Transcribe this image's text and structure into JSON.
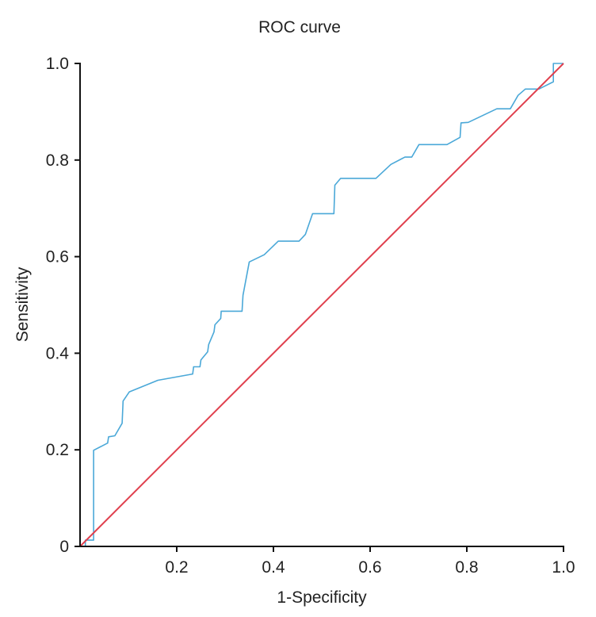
{
  "chart_data": {
    "type": "line",
    "title": "ROC curve",
    "xlabel": "1-Specificity",
    "ylabel": "Sensitivity",
    "xlim": [
      0,
      1.0
    ],
    "ylim": [
      0,
      1.0
    ],
    "x_ticks": [
      0.2,
      0.4,
      0.6,
      0.8,
      1.0
    ],
    "x_tick_labels": [
      "0.2",
      "0.4",
      "0.6",
      "0.8",
      "1.0"
    ],
    "y_ticks": [
      0,
      0.2,
      0.4,
      0.6,
      0.8,
      1.0
    ],
    "y_tick_labels": [
      "0",
      "0.2",
      "0.4",
      "0.6",
      "0.8",
      "1.0"
    ],
    "grid": false,
    "legend": "none",
    "series": [
      {
        "name": "ROC",
        "color": "#4aa8d8",
        "x": [
          0,
          0.011,
          0.011,
          0.028,
          0.028,
          0.057,
          0.059,
          0.072,
          0.087,
          0.089,
          0.102,
          0.161,
          0.233,
          0.235,
          0.248,
          0.25,
          0.264,
          0.266,
          0.277,
          0.279,
          0.291,
          0.292,
          0.335,
          0.337,
          0.35,
          0.381,
          0.41,
          0.453,
          0.466,
          0.481,
          0.525,
          0.527,
          0.539,
          0.612,
          0.643,
          0.672,
          0.686,
          0.701,
          0.759,
          0.786,
          0.788,
          0.803,
          0.862,
          0.89,
          0.906,
          0.921,
          0.949,
          0.979,
          0.979,
          1.0
        ],
        "y": [
          0,
          0,
          0.013,
          0.013,
          0.199,
          0.214,
          0.227,
          0.229,
          0.255,
          0.301,
          0.32,
          0.344,
          0.357,
          0.372,
          0.372,
          0.386,
          0.403,
          0.418,
          0.444,
          0.459,
          0.472,
          0.487,
          0.487,
          0.52,
          0.589,
          0.604,
          0.632,
          0.632,
          0.646,
          0.689,
          0.689,
          0.748,
          0.762,
          0.762,
          0.791,
          0.806,
          0.806,
          0.832,
          0.832,
          0.847,
          0.877,
          0.878,
          0.906,
          0.906,
          0.934,
          0.947,
          0.947,
          0.962,
          1.0,
          1.0
        ]
      },
      {
        "name": "Reference",
        "color": "#e0404e",
        "x": [
          0,
          1.0
        ],
        "y": [
          0,
          1.0
        ]
      }
    ]
  }
}
